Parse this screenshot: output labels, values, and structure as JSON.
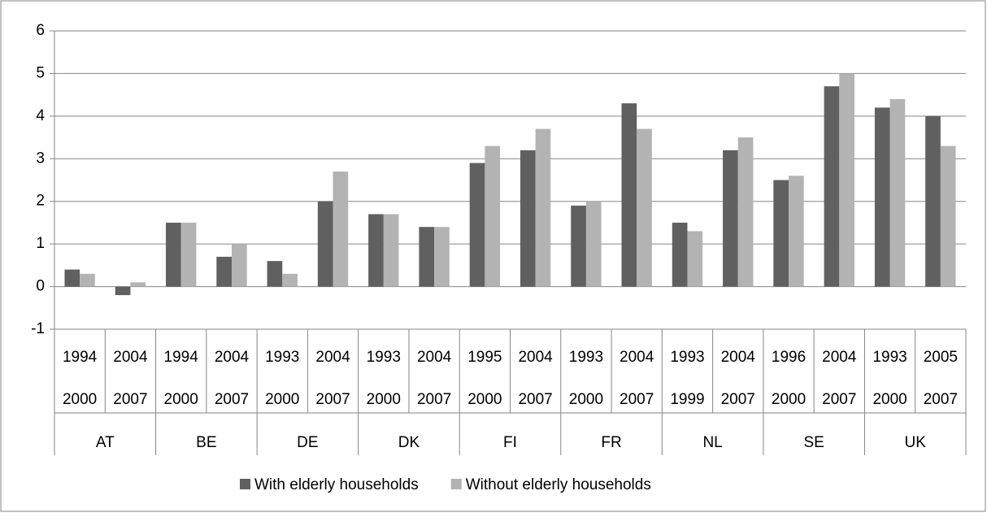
{
  "chart_data": {
    "type": "bar",
    "groups": [
      {
        "name": "AT",
        "periods": [
          [
            "1994",
            "2000"
          ],
          [
            "2004",
            "2007"
          ]
        ]
      },
      {
        "name": "BE",
        "periods": [
          [
            "1994",
            "2000"
          ],
          [
            "2004",
            "2007"
          ]
        ]
      },
      {
        "name": "DE",
        "periods": [
          [
            "1993",
            "2000"
          ],
          [
            "2004",
            "2007"
          ]
        ]
      },
      {
        "name": "DK",
        "periods": [
          [
            "1993",
            "2000"
          ],
          [
            "2004",
            "2007"
          ]
        ]
      },
      {
        "name": "FI",
        "periods": [
          [
            "1995",
            "2000"
          ],
          [
            "2004",
            "2007"
          ]
        ]
      },
      {
        "name": "FR",
        "periods": [
          [
            "1993",
            "2000"
          ],
          [
            "2004",
            "2007"
          ]
        ]
      },
      {
        "name": "NL",
        "periods": [
          [
            "1993",
            "1999"
          ],
          [
            "2004",
            "2007"
          ]
        ]
      },
      {
        "name": "SE",
        "periods": [
          [
            "1996",
            "2000"
          ],
          [
            "2004",
            "2007"
          ]
        ]
      },
      {
        "name": "UK",
        "periods": [
          [
            "1993",
            "2000"
          ],
          [
            "2005",
            "2007"
          ]
        ]
      }
    ],
    "series": [
      {
        "name": "With elderly households",
        "color": "#606060",
        "values": [
          0.4,
          -0.2,
          1.5,
          0.7,
          0.6,
          2.0,
          1.7,
          1.4,
          2.9,
          3.2,
          1.9,
          4.3,
          1.5,
          3.2,
          2.5,
          4.7,
          4.2,
          4.0
        ]
      },
      {
        "name": "Without elderly households",
        "color": "#b3b3b3",
        "values": [
          0.3,
          0.1,
          1.5,
          1.0,
          0.3,
          2.7,
          1.7,
          1.4,
          3.3,
          3.7,
          2.0,
          3.7,
          1.3,
          3.5,
          2.6,
          5.0,
          4.4,
          3.3
        ]
      }
    ],
    "ylim": [
      -1,
      6
    ],
    "yticks": [
      -1,
      0,
      1,
      2,
      3,
      4,
      5,
      6
    ],
    "grid": true,
    "legend": "bottom"
  }
}
